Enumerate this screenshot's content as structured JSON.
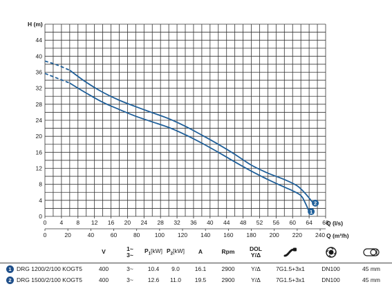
{
  "chart_data": {
    "type": "line",
    "ylabel": "H (m)",
    "xlabel": "Q (l/s)",
    "xlabel2": "Q (m³/h)",
    "ylim": [
      0,
      48
    ],
    "xlim": [
      0,
      68
    ],
    "x2lim": [
      0,
      244.8
    ],
    "yticks": [
      "0",
      "4",
      "8",
      "12",
      "16",
      "20",
      "24",
      "28",
      "32",
      "36",
      "40",
      "44"
    ],
    "xticks": [
      "0",
      "4",
      "8",
      "12",
      "16",
      "20",
      "24",
      "28",
      "32",
      "36",
      "40",
      "44",
      "48",
      "52",
      "56",
      "60",
      "64",
      "68"
    ],
    "x2ticks": [
      "0",
      "20",
      "40",
      "60",
      "80",
      "100",
      "120",
      "140",
      "160",
      "180",
      "200",
      "220",
      "240"
    ],
    "series": [
      {
        "name": "1",
        "color": "#1f5f99",
        "dashed_x": [
          0,
          6
        ],
        "points": [
          [
            0,
            35.7
          ],
          [
            3,
            34.5
          ],
          [
            6,
            33.3
          ],
          [
            10,
            30.8
          ],
          [
            14,
            28.5
          ],
          [
            18,
            26.7
          ],
          [
            22,
            25.0
          ],
          [
            26,
            23.6
          ],
          [
            30,
            22.2
          ],
          [
            34,
            20.4
          ],
          [
            38,
            18.3
          ],
          [
            42,
            16.0
          ],
          [
            46,
            13.6
          ],
          [
            50,
            11.3
          ],
          [
            54,
            9.2
          ],
          [
            58,
            7.3
          ],
          [
            60,
            6.4
          ],
          [
            62,
            5.2
          ],
          [
            63,
            3.5
          ],
          [
            64,
            1.2
          ]
        ]
      },
      {
        "name": "2",
        "color": "#1f5f99",
        "dashed_x": [
          0,
          6
        ],
        "points": [
          [
            0,
            38.8
          ],
          [
            3,
            37.8
          ],
          [
            6,
            36.5
          ],
          [
            10,
            33.5
          ],
          [
            14,
            31.0
          ],
          [
            18,
            29.0
          ],
          [
            22,
            27.4
          ],
          [
            26,
            25.9
          ],
          [
            30,
            24.4
          ],
          [
            34,
            22.5
          ],
          [
            38,
            20.3
          ],
          [
            42,
            18.0
          ],
          [
            46,
            15.5
          ],
          [
            50,
            12.8
          ],
          [
            54,
            10.8
          ],
          [
            58,
            9.2
          ],
          [
            61,
            7.7
          ],
          [
            63,
            5.8
          ],
          [
            65,
            3.3
          ]
        ]
      }
    ]
  },
  "table": {
    "headers": {
      "v": "V",
      "phase_top": "1~",
      "phase_bottom": "3~",
      "p1_pre": "P",
      "p1_sub": "1",
      "p1_unit": "[kW]",
      "p2_pre": "P",
      "p2_sub": "2",
      "p2_unit": "[kW]",
      "a": "A",
      "rpm": "Rpm",
      "dol_top": "DOL",
      "dol_bottom": "Y/Δ"
    },
    "rows": [
      {
        "num": "1",
        "model": "DRG 1200/2/100 KOGT5",
        "v": "400",
        "phase": "3~",
        "p1": "10.4",
        "p2": "9.0",
        "a": "16.1",
        "rpm": "2900",
        "dol": "Y/Δ",
        "cable": "7G1.5+3x1",
        "dn": "DN100",
        "size": "45 mm"
      },
      {
        "num": "2",
        "model": "DRG 1500/2/100 KOGT5",
        "v": "400",
        "phase": "3~",
        "p1": "12.6",
        "p2": "11.0",
        "a": "19.5",
        "rpm": "2900",
        "dol": "Y/Δ",
        "cable": "7G1.5+3x1",
        "dn": "DN100",
        "size": "45 mm"
      }
    ],
    "icons": [
      "cable-icon",
      "pump-outlet-icon",
      "solids-passage-icon"
    ],
    "accent": "#1f4f8a"
  }
}
